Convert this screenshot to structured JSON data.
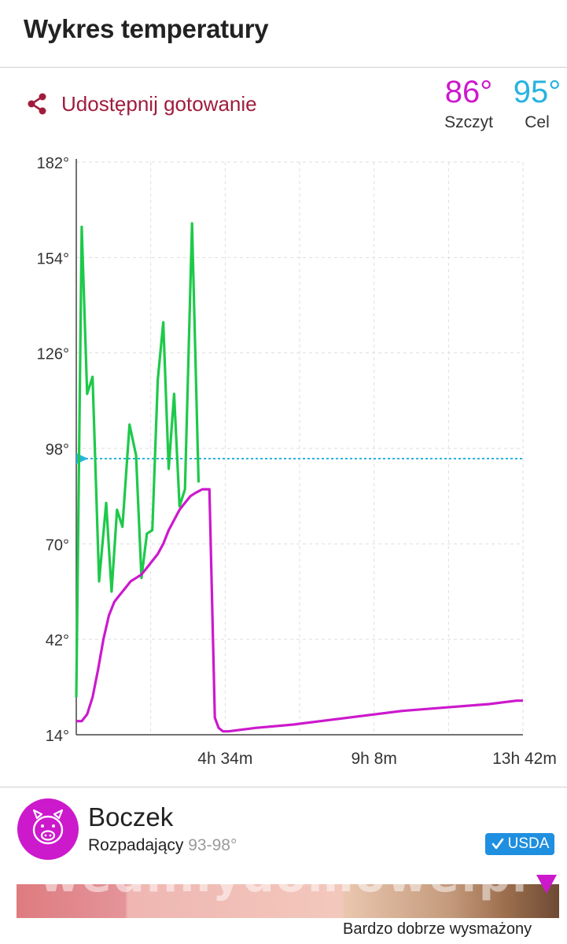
{
  "header": {
    "title": "Wykres temperatury"
  },
  "share": {
    "label": "Udostępnij gotowanie",
    "icon": "share-icon"
  },
  "stats": {
    "peak": {
      "value": "86°",
      "label": "Szczyt",
      "color": "#cc19cc"
    },
    "target": {
      "value": "95°",
      "label": "Cel",
      "color": "#27b3e0"
    }
  },
  "chart_data": {
    "type": "line",
    "x_unit": "minutes",
    "xlim": [
      0,
      822
    ],
    "ylim": [
      14,
      182
    ],
    "yticks": [
      14,
      42,
      70,
      98,
      126,
      154,
      182
    ],
    "ytick_labels": [
      "14°",
      "42°",
      "70°",
      "98°",
      "126°",
      "154°",
      "182°"
    ],
    "xtick_values": [
      274,
      548,
      822
    ],
    "xtick_labels": [
      "4h 34m",
      "9h 8m",
      "13h 42m"
    ],
    "grid": true,
    "target_line": {
      "value": 95,
      "color": "#27b3e0"
    },
    "series": [
      {
        "color": "#1ec94a",
        "points": [
          [
            0,
            25
          ],
          [
            10,
            163
          ],
          [
            20,
            114
          ],
          [
            30,
            119
          ],
          [
            42,
            59
          ],
          [
            55,
            82
          ],
          [
            65,
            56
          ],
          [
            75,
            80
          ],
          [
            85,
            75
          ],
          [
            98,
            105
          ],
          [
            110,
            96
          ],
          [
            120,
            60
          ],
          [
            130,
            73
          ],
          [
            140,
            74
          ],
          [
            150,
            118
          ],
          [
            160,
            135
          ],
          [
            170,
            92
          ],
          [
            180,
            114
          ],
          [
            190,
            81
          ],
          [
            200,
            86
          ],
          [
            213,
            164
          ],
          [
            225,
            88
          ]
        ]
      },
      {
        "color": "#cc19cc",
        "points": [
          [
            0,
            18
          ],
          [
            10,
            18
          ],
          [
            20,
            20
          ],
          [
            30,
            25
          ],
          [
            40,
            33
          ],
          [
            50,
            42
          ],
          [
            60,
            49
          ],
          [
            70,
            53
          ],
          [
            80,
            55
          ],
          [
            90,
            57
          ],
          [
            100,
            59
          ],
          [
            110,
            60
          ],
          [
            120,
            61
          ],
          [
            130,
            63
          ],
          [
            140,
            65
          ],
          [
            150,
            67
          ],
          [
            160,
            70
          ],
          [
            170,
            74
          ],
          [
            180,
            77
          ],
          [
            190,
            80
          ],
          [
            200,
            82
          ],
          [
            210,
            84
          ],
          [
            220,
            85
          ],
          [
            232,
            86
          ],
          [
            245,
            86
          ],
          [
            255,
            19
          ],
          [
            262,
            16
          ],
          [
            270,
            15
          ],
          [
            280,
            15
          ],
          [
            330,
            16
          ],
          [
            400,
            17
          ],
          [
            500,
            19
          ],
          [
            600,
            21
          ],
          [
            680,
            22
          ],
          [
            760,
            23
          ],
          [
            810,
            24
          ],
          [
            822,
            24
          ]
        ]
      }
    ]
  },
  "meat": {
    "name": "Boczek",
    "doneness": "Rozpadający",
    "range": "93-98°",
    "usda_label": "USDA",
    "accent": "#cc19cc",
    "icon": "pig-icon"
  },
  "scale": {
    "label": "Bardzo dobrze wysmażony",
    "watermark": "wedlinydomowe.pl",
    "marker_position": 0.97
  }
}
